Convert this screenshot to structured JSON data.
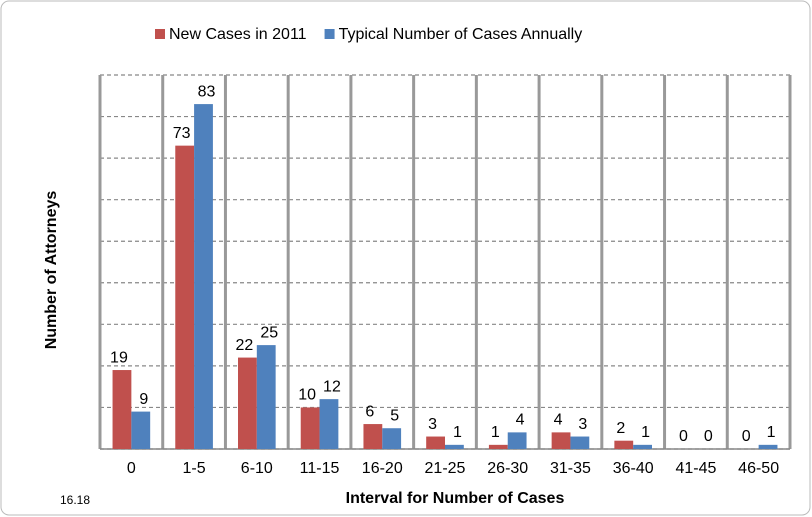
{
  "chart_data": {
    "type": "bar",
    "x_label": "Interval for Number of Cases",
    "y_label": "Number of Attorneys",
    "footer": "16.18",
    "categories": [
      "0",
      "1-5",
      "6-10",
      "11-15",
      "16-20",
      "21-25",
      "26-30",
      "31-35",
      "36-40",
      "41-45",
      "46-50"
    ],
    "series": [
      {
        "name": "New Cases in 2011",
        "color": "#c0504d",
        "values": [
          19,
          73,
          22,
          10,
          6,
          3,
          1,
          4,
          2,
          0,
          0
        ]
      },
      {
        "name": "Typical Number of Cases Annually",
        "color": "#4f81bd",
        "values": [
          9,
          83,
          25,
          12,
          5,
          1,
          4,
          3,
          1,
          0,
          1
        ]
      }
    ],
    "ylim": [
      0,
      90
    ],
    "yticks": [
      0,
      10,
      20,
      30,
      40,
      50,
      60,
      70,
      80,
      90
    ],
    "grid": true,
    "legend": "top"
  }
}
